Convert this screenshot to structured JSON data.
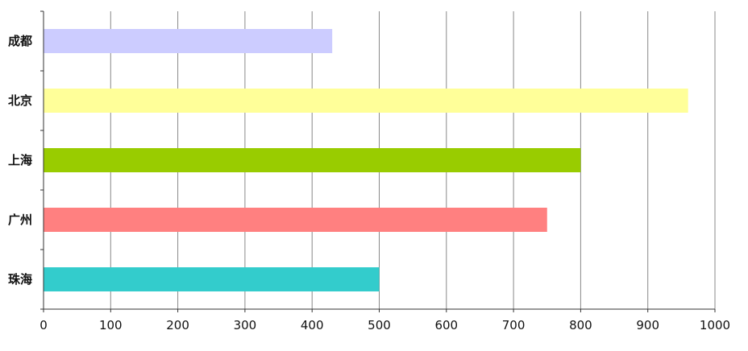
{
  "chart_data": {
    "type": "bar",
    "orientation": "horizontal",
    "categories": [
      "成都",
      "北京",
      "上海",
      "广州",
      "珠海"
    ],
    "values": [
      430,
      960,
      800,
      750,
      500
    ],
    "colors": [
      "#ccccff",
      "#ffff99",
      "#99cc00",
      "#ff8080",
      "#33cccc"
    ],
    "xlim": [
      0,
      1000
    ],
    "xticks": [
      "0",
      "100",
      "200",
      "300",
      "400",
      "500",
      "600",
      "700",
      "800",
      "900",
      "1000"
    ],
    "grid": true,
    "legend": "none",
    "title": "",
    "xlabel": "",
    "ylabel": ""
  }
}
